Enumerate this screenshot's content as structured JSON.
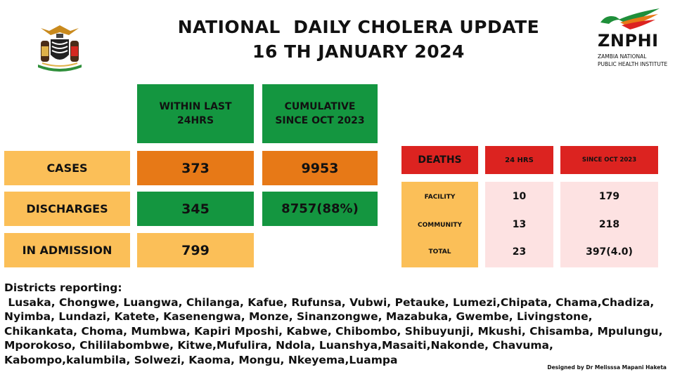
{
  "header": {
    "title_line1": "NATIONAL  DAILY CHOLERA UPDATE",
    "title_line2": "16 TH JANUARY 2024"
  },
  "logo": {
    "abbr": "ZNPHI",
    "line1": "ZAMBIA NATIONAL",
    "line2": "PUBLIC HEALTH INSTITUTE"
  },
  "summary": {
    "col1_header_l1": "WITHIN LAST",
    "col1_header_l2": "24HRS",
    "col2_header_l1": "CUMULATIVE",
    "col2_header_l2": "SINCE OCT 2023",
    "rows": [
      {
        "label": "CASES",
        "last24": "373",
        "cumulative": "9953"
      },
      {
        "label": "DISCHARGES",
        "last24": "345",
        "cumulative": "8757(88%)"
      },
      {
        "label": "IN ADMISSION",
        "last24": "799"
      }
    ]
  },
  "deaths": {
    "header": "DEATHS",
    "col1": "24 HRS",
    "col2": "SINCE OCT 2023",
    "rows": [
      {
        "label": "FACILITY",
        "h24": "10",
        "since": "179"
      },
      {
        "label": "COMMUNITY",
        "h24": "13",
        "since": "218"
      },
      {
        "label": "TOTAL",
        "h24": "23",
        "since": "397(4.0)"
      }
    ]
  },
  "districts": {
    "heading": "Districts reporting:",
    "list": " Lusaka, Chongwe, Luangwa, Chilanga, Kafue, Rufunsa, Vubwi, Petauke, Lumezi,Chipata, Chama,Chadiza, Nyimba, Lundazi, Katete, Kasenengwa, Monze, Sinanzongwe, Mazabuka, Gwembe, Livingstone, Chikankata, Choma, Mumbwa, Kapiri Mposhi, Kabwe, Chibombo, Shibuyunji, Mkushi, Chisamba, Mpulungu, Mporokoso, Chililabombwe, Kitwe,Mufulira, Ndola, Luanshya,Masaiti,Nakonde, Chavuma, Kabompo,kalumbila, Solwezi, Kaoma, Mongu, Nkeyema,Luampa"
  },
  "credit": "Designed by Dr Melisssa Mapani Haketa",
  "colors": {
    "green": "#149640",
    "orange": "#e77917",
    "yellow": "#fbbf58",
    "red": "#dc2320",
    "pink": "#fde2e2"
  }
}
